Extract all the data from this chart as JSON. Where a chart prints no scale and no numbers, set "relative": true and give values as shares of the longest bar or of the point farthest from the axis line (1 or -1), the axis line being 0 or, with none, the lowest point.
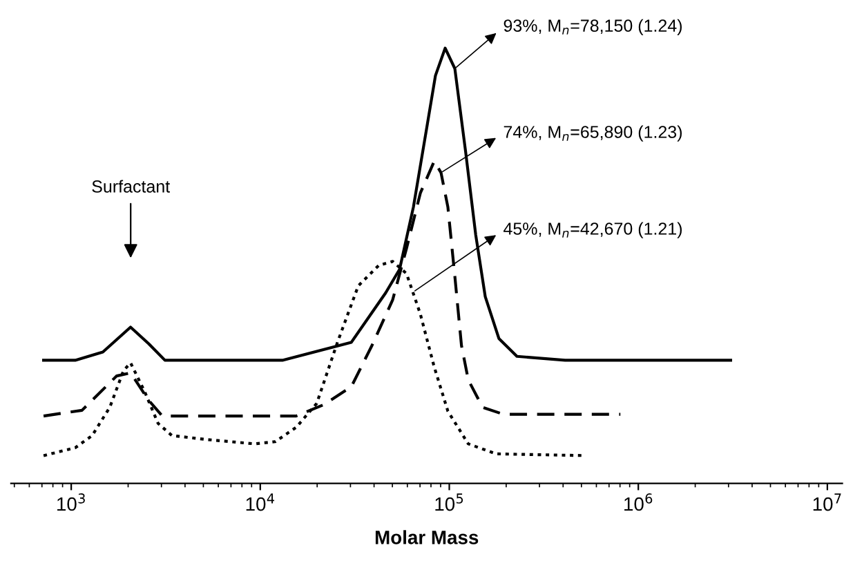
{
  "chart_data": {
    "type": "line",
    "relative": true,
    "log": "x",
    "xlabel": "Molar Mass",
    "legend": false,
    "grid": false,
    "marker": "none",
    "xlim": [
      480,
      12000000
    ],
    "xticks": [
      {
        "value": 1000,
        "label": "10$^{3}$"
      },
      {
        "value": 10000,
        "label": "10$^{4}$"
      },
      {
        "value": 100000,
        "label": "10$^{5}$"
      },
      {
        "value": 1000000,
        "label": "10$^{6}$"
      },
      {
        "value": 10000000,
        "label": "10$^{7}$"
      }
    ],
    "series": [
      {
        "color": "#000000",
        "line_style": "solid",
        "x": [
          714,
          1050,
          1470,
          2060,
          2570,
          3130,
          13100,
          30300,
          46100,
          54600,
          64600,
          76400,
          84500,
          95100,
          107000,
          122000,
          138000,
          155000,
          183000,
          228000,
          410000,
          3080000
        ],
        "values": [
          0.283,
          0.283,
          0.302,
          0.359,
          0.321,
          0.283,
          0.283,
          0.324,
          0.438,
          0.492,
          0.635,
          0.823,
          0.937,
          1.0,
          0.953,
          0.762,
          0.571,
          0.429,
          0.333,
          0.292,
          0.283,
          0.283
        ]
      },
      {
        "color": "#000000",
        "line_style": "dashed",
        "x": [
          714,
          1140,
          1740,
          2060,
          2570,
          3030,
          15500,
          21700,
          30300,
          39000,
          50200,
          59400,
          70300,
          83200,
          90400,
          98300,
          107000,
          116000,
          126000,
          150000,
          193000,
          804000
        ],
        "values": [
          0.155,
          0.168,
          0.247,
          0.254,
          0.191,
          0.155,
          0.155,
          0.181,
          0.222,
          0.317,
          0.422,
          0.54,
          0.667,
          0.74,
          0.714,
          0.635,
          0.476,
          0.317,
          0.238,
          0.175,
          0.159,
          0.159
        ]
      },
      {
        "color": "#000000",
        "line_style": "dotted",
        "x": [
          714,
          1050,
          1290,
          1600,
          1890,
          2060,
          2440,
          2880,
          3410,
          5190,
          9350,
          12000,
          15500,
          19900,
          25600,
          33000,
          42400,
          50200,
          59400,
          70300,
          83200,
          98300,
          126000,
          177000,
          528000
        ],
        "values": [
          0.064,
          0.082,
          0.11,
          0.175,
          0.259,
          0.277,
          0.212,
          0.138,
          0.11,
          0.101,
          0.091,
          0.096,
          0.129,
          0.184,
          0.324,
          0.454,
          0.501,
          0.51,
          0.482,
          0.389,
          0.268,
          0.166,
          0.091,
          0.068,
          0.064
        ]
      }
    ],
    "annotations": [
      "Surfactant",
      {
        "text": "93%, M$_{n}$=78,150 (1.24)",
        "x": 107000,
        "y": 0.953
      },
      {
        "text": "74%, M$_{n}$=65,890 (1.23)",
        "x": 90400,
        "y": 0.714
      },
      {
        "text": "45%, M$_{n}$=42,670 (1.21)",
        "x": 64600,
        "y": 0.44
      }
    ]
  }
}
